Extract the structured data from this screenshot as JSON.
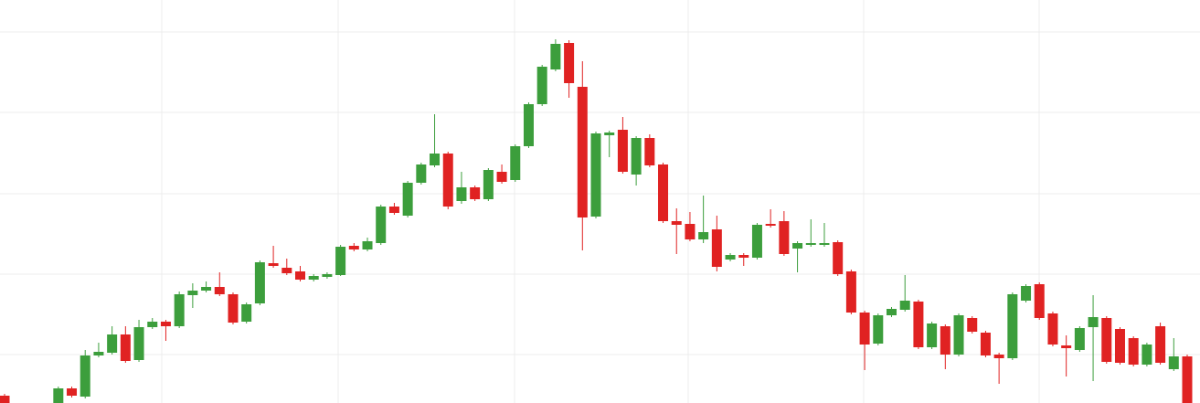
{
  "chart_data": {
    "type": "candlestick",
    "open": [
      8,
      null,
      null,
      null,
      0,
      16,
      7,
      52,
      55,
      75,
      47,
      83,
      89,
      84,
      118,
      123,
      127,
      119,
      89,
      109,
      153,
      148,
      144,
      135,
      138,
      140,
      172,
      168,
      175,
      215,
      205,
      241,
      260,
      273,
      221,
      236,
      223,
      253,
      244,
      281,
      327,
      365,
      394,
      346,
      204,
      293,
      299,
      250,
      290,
      261,
      199,
      196,
      179,
      190,
      157,
      162,
      159,
      196,
      199,
      169,
      173,
      173,
      176,
      144,
      99,
      65,
      96,
      102,
      111,
      61,
      84,
      53,
      93,
      77,
      53,
      49,
      112,
      130,
      98,
      63,
      58,
      83,
      93,
      81,
      71,
      42,
      84,
      37,
      51
    ],
    "high": [
      10,
      null,
      null,
      null,
      18,
      18,
      58,
      66,
      84,
      84,
      91,
      93,
      91,
      122,
      131,
      133,
      143,
      121,
      110,
      156,
      172,
      158,
      150,
      141,
      143,
      173,
      175,
      181,
      217,
      219,
      243,
      263,
      316,
      275,
      253,
      238,
      257,
      261,
      283,
      329,
      370,
      398,
      397,
      374,
      297,
      298,
      313,
      292,
      294,
      263,
      213,
      209,
      227,
      205,
      164,
      164,
      197,
      212,
      210,
      177,
      201,
      197,
      178,
      146,
      101,
      98,
      105,
      140,
      113,
      89,
      86,
      98,
      95,
      79,
      55,
      121,
      130,
      132,
      100,
      74,
      84,
      118,
      95,
      83,
      73,
      66,
      88,
      71,
      53
    ],
    "low": [
      0,
      null,
      null,
      null,
      0,
      6,
      5,
      50,
      53,
      44,
      45,
      81,
      68,
      82,
      104,
      121,
      117,
      86,
      87,
      107,
      148,
      140,
      133,
      133,
      136,
      139,
      166,
      166,
      173,
      206,
      203,
      239,
      258,
      212,
      218,
      221,
      221,
      240,
      242,
      279,
      325,
      363,
      334,
      167,
      202,
      269,
      251,
      238,
      258,
      197,
      163,
      177,
      175,
      144,
      155,
      150,
      157,
      192,
      161,
      143,
      171,
      171,
      139,
      97,
      36,
      63,
      94,
      100,
      59,
      59,
      37,
      51,
      76,
      50,
      21,
      47,
      110,
      91,
      62,
      29,
      56,
      24,
      43,
      42,
      40,
      40,
      42,
      35,
      0
    ],
    "close": [
      0,
      null,
      null,
      null,
      16,
      8,
      52,
      56,
      75,
      46,
      83,
      89,
      84,
      119,
      123,
      127,
      119,
      88,
      108,
      154,
      150,
      142,
      135,
      139,
      141,
      171,
      168,
      177,
      215,
      208,
      241,
      261,
      273,
      215,
      236,
      223,
      255,
      242,
      281,
      327,
      368,
      393,
      350,
      203,
      295,
      296,
      253,
      290,
      260,
      199,
      195,
      179,
      187,
      149,
      162,
      159,
      195,
      194,
      163,
      175,
      175,
      175,
      141,
      99,
      64,
      96,
      103,
      112,
      61,
      87,
      53,
      96,
      78,
      52,
      49,
      119,
      128,
      93,
      64,
      60,
      82,
      94,
      45,
      44,
      42,
      64,
      44,
      51,
      0
    ],
    "up_color": "#3c9e3c",
    "down_color": "#e02222",
    "ylim": [
      0,
      441
    ],
    "yticks": [
      53,
      141,
      229,
      318,
      406
    ],
    "grid": true
  }
}
